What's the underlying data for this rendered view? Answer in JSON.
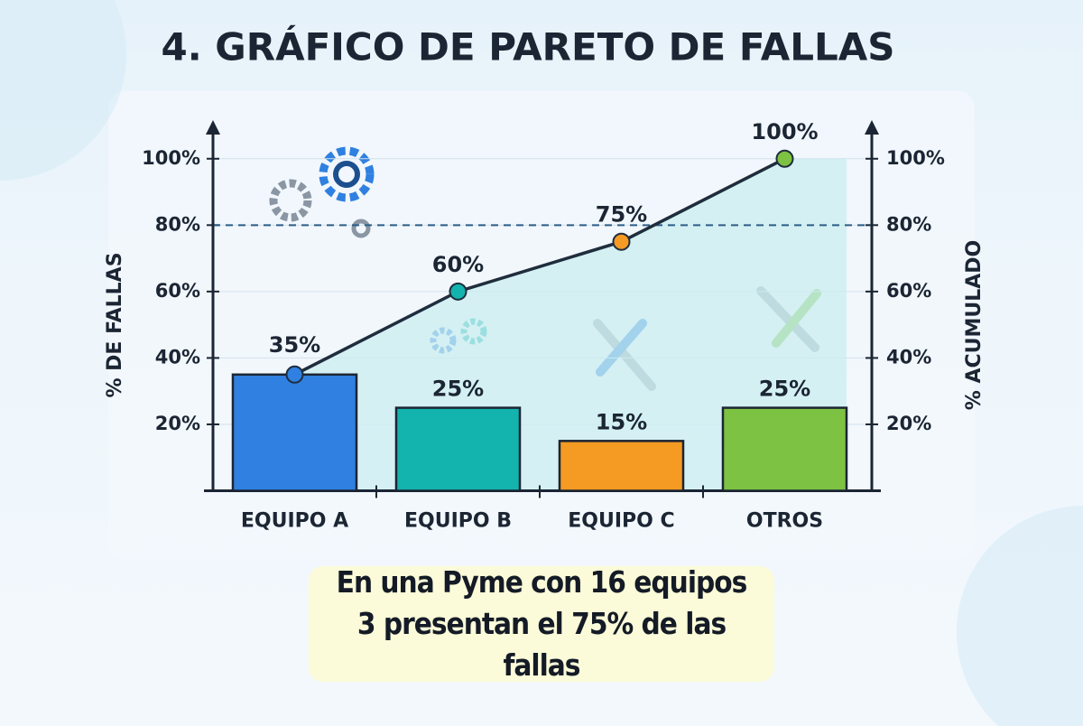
{
  "chart_data": {
    "type": "pareto",
    "title": "4. GRÁFICO DE PARETO DE FALLAS",
    "ylabel": "% DE FALLAS",
    "y2label": "% ACUMULADO",
    "categories": [
      "EQUIPO A",
      "EQUIPO B",
      "EQUIPO C",
      "OTROS"
    ],
    "series": [
      {
        "type": "bar",
        "values": [
          35,
          25,
          15,
          25
        ],
        "value_labels": [
          "35%",
          "25%",
          "15%",
          "25%"
        ],
        "colors": [
          "#2f80e0",
          "#13b3ae",
          "#f59a23",
          "#7dc242"
        ]
      },
      {
        "type": "line",
        "axis": "y2",
        "values": [
          35,
          60,
          75,
          100
        ],
        "value_labels": [
          null,
          "60%",
          "75%",
          "100%"
        ],
        "color": "#1f2d3d",
        "colors": [
          "#2f80e0",
          "#13b3ae",
          "#f59a23",
          "#7dc242"
        ]
      }
    ],
    "ylim": [
      0,
      110
    ],
    "yticks": [
      {
        "value": 20,
        "label": "20%"
      },
      {
        "value": 40,
        "label": "40%"
      },
      {
        "value": 60,
        "label": "60%"
      },
      {
        "value": 80,
        "label": "80%"
      },
      {
        "value": 100,
        "label": "100%"
      }
    ],
    "y2lim": [
      0,
      110
    ],
    "y2ticks": [
      {
        "value": 20,
        "label": "20%"
      },
      {
        "value": 40,
        "label": "40%"
      },
      {
        "value": 60,
        "label": "60%"
      },
      {
        "value": 80,
        "label": "80%"
      },
      {
        "value": 100,
        "label": "100%"
      }
    ],
    "threshold": 80,
    "grid": true,
    "note": "En una Pyme con 16 equipos 3 presentan el 75% de las fallas"
  }
}
